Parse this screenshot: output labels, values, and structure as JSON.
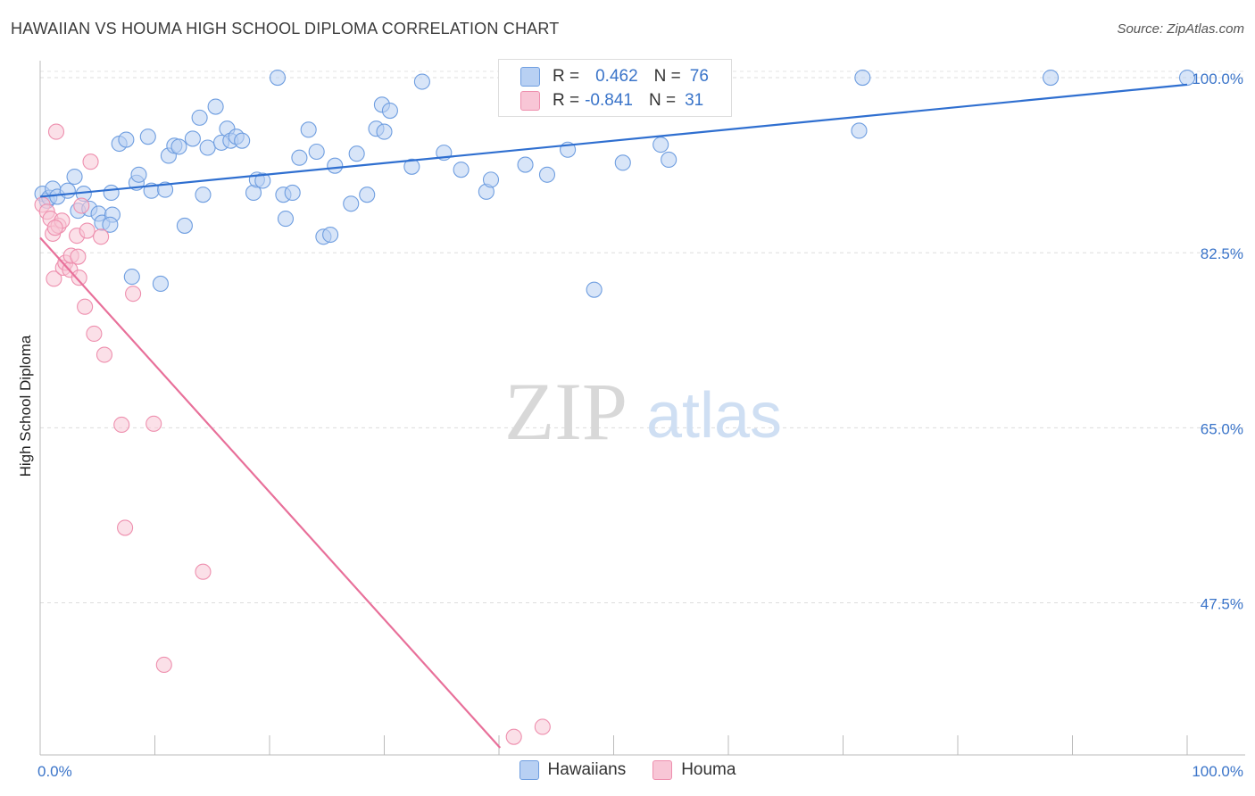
{
  "header": {
    "title": "HAWAIIAN VS HOUMA HIGH SCHOOL DIPLOMA CORRELATION CHART",
    "source": "Source: ZipAtlas.com"
  },
  "watermark": {
    "zip": "ZIP",
    "atlas": "atlas"
  },
  "legend_stats": [
    {
      "r_label": "R =",
      "r_value": "0.462",
      "n_label": "N =",
      "n_value": "76",
      "fill": "#b8d0f3",
      "stroke": "#6f9ee0"
    },
    {
      "r_label": "R =",
      "r_value": "-0.841",
      "n_label": "N =",
      "n_value": "31",
      "fill": "#f8c6d6",
      "stroke": "#ee8fae"
    }
  ],
  "bottom_legend": [
    {
      "label": "Hawaiians",
      "fill": "#b8d0f3",
      "stroke": "#6f9ee0"
    },
    {
      "label": "Houma",
      "fill": "#f8c6d6",
      "stroke": "#ee8fae"
    }
  ],
  "chart_data": {
    "type": "scatter",
    "title": "HAWAIIAN VS HOUMA HIGH SCHOOL DIPLOMA CORRELATION CHART",
    "xlabel": "",
    "ylabel": "High School Diploma",
    "xlim": [
      0,
      100
    ],
    "ylim": [
      33,
      101.7
    ],
    "x_tick_labels": [
      "0.0%",
      "100.0%"
    ],
    "y_ticks": [
      {
        "value": 100,
        "label": "100.0%"
      },
      {
        "value": 82.5,
        "label": "82.5%"
      },
      {
        "value": 65,
        "label": "65.0%"
      },
      {
        "value": 47.5,
        "label": "47.5%"
      }
    ],
    "series": [
      {
        "name": "Hawaiians",
        "color": "#6f9ee0",
        "fill": "#b8d0f3",
        "trend": {
          "x": [
            0,
            100
          ],
          "y": [
            88.1,
            99.3
          ],
          "color": "#2f6fd0"
        },
        "points": [
          [
            0.2,
            88.4
          ],
          [
            0.6,
            87.7
          ],
          [
            0.8,
            88.0
          ],
          [
            1.1,
            88.9
          ],
          [
            1.5,
            88.1
          ],
          [
            2.4,
            88.7
          ],
          [
            3.0,
            90.1
          ],
          [
            3.3,
            86.7
          ],
          [
            3.8,
            88.4
          ],
          [
            4.3,
            86.9
          ],
          [
            5.1,
            86.4
          ],
          [
            5.4,
            85.5
          ],
          [
            6.3,
            86.3
          ],
          [
            6.1,
            85.3
          ],
          [
            6.2,
            88.5
          ],
          [
            6.9,
            93.4
          ],
          [
            7.5,
            93.8
          ],
          [
            8.0,
            80.1
          ],
          [
            8.4,
            89.5
          ],
          [
            8.6,
            90.3
          ],
          [
            9.4,
            94.1
          ],
          [
            9.7,
            88.7
          ],
          [
            10.5,
            79.4
          ],
          [
            10.9,
            88.8
          ],
          [
            11.2,
            92.2
          ],
          [
            11.7,
            93.2
          ],
          [
            12.1,
            93.1
          ],
          [
            12.6,
            85.2
          ],
          [
            13.3,
            93.9
          ],
          [
            13.9,
            96.0
          ],
          [
            14.2,
            88.3
          ],
          [
            14.6,
            93.0
          ],
          [
            15.3,
            97.1
          ],
          [
            15.8,
            93.5
          ],
          [
            16.3,
            94.9
          ],
          [
            16.6,
            93.7
          ],
          [
            17.1,
            94.1
          ],
          [
            17.6,
            93.7
          ],
          [
            18.6,
            88.5
          ],
          [
            18.9,
            89.8
          ],
          [
            19.4,
            89.7
          ],
          [
            20.7,
            100.0
          ],
          [
            21.2,
            88.3
          ],
          [
            21.4,
            85.9
          ],
          [
            22.0,
            88.5
          ],
          [
            22.6,
            92.0
          ],
          [
            23.4,
            94.8
          ],
          [
            24.1,
            92.6
          ],
          [
            24.7,
            84.1
          ],
          [
            25.3,
            84.3
          ],
          [
            25.7,
            91.2
          ],
          [
            27.1,
            87.4
          ],
          [
            27.6,
            92.4
          ],
          [
            28.5,
            88.3
          ],
          [
            29.3,
            94.9
          ],
          [
            29.8,
            97.3
          ],
          [
            30.0,
            94.6
          ],
          [
            30.5,
            96.7
          ],
          [
            32.4,
            91.1
          ],
          [
            33.3,
            99.6
          ],
          [
            35.2,
            92.5
          ],
          [
            36.7,
            90.8
          ],
          [
            38.9,
            88.6
          ],
          [
            39.3,
            89.8
          ],
          [
            42.3,
            91.3
          ],
          [
            44.2,
            90.3
          ],
          [
            46.0,
            92.8
          ],
          [
            50.3,
            100.0
          ],
          [
            48.3,
            78.8
          ],
          [
            50.8,
            91.5
          ],
          [
            54.1,
            93.3
          ],
          [
            54.8,
            91.8
          ],
          [
            71.7,
            100.0
          ],
          [
            71.4,
            94.7
          ],
          [
            88.1,
            100.0
          ],
          [
            100.0,
            100.0
          ]
        ]
      },
      {
        "name": "Houma",
        "color": "#ee8fae",
        "fill": "#f8c6d6",
        "trend": {
          "x": [
            0,
            40.1
          ],
          "y": [
            84.0,
            33.0
          ],
          "color": "#e8709a"
        },
        "points": [
          [
            0.2,
            87.3
          ],
          [
            0.6,
            86.6
          ],
          [
            0.9,
            85.9
          ],
          [
            1.1,
            84.4
          ],
          [
            1.2,
            79.9
          ],
          [
            1.4,
            94.6
          ],
          [
            1.6,
            85.2
          ],
          [
            1.9,
            85.7
          ],
          [
            2.0,
            81.0
          ],
          [
            2.2,
            81.5
          ],
          [
            2.6,
            80.8
          ],
          [
            2.7,
            82.2
          ],
          [
            3.2,
            84.2
          ],
          [
            3.3,
            82.1
          ],
          [
            3.4,
            80.0
          ],
          [
            3.6,
            87.2
          ],
          [
            3.9,
            77.1
          ],
          [
            4.1,
            84.7
          ],
          [
            4.4,
            91.6
          ],
          [
            4.7,
            74.4
          ],
          [
            5.3,
            84.1
          ],
          [
            5.6,
            72.3
          ],
          [
            7.1,
            65.3
          ],
          [
            7.4,
            55.0
          ],
          [
            8.1,
            78.4
          ],
          [
            9.9,
            65.4
          ],
          [
            10.8,
            41.3
          ],
          [
            14.2,
            50.6
          ],
          [
            41.3,
            34.1
          ],
          [
            43.8,
            35.1
          ],
          [
            1.3,
            85.0
          ]
        ]
      }
    ]
  }
}
